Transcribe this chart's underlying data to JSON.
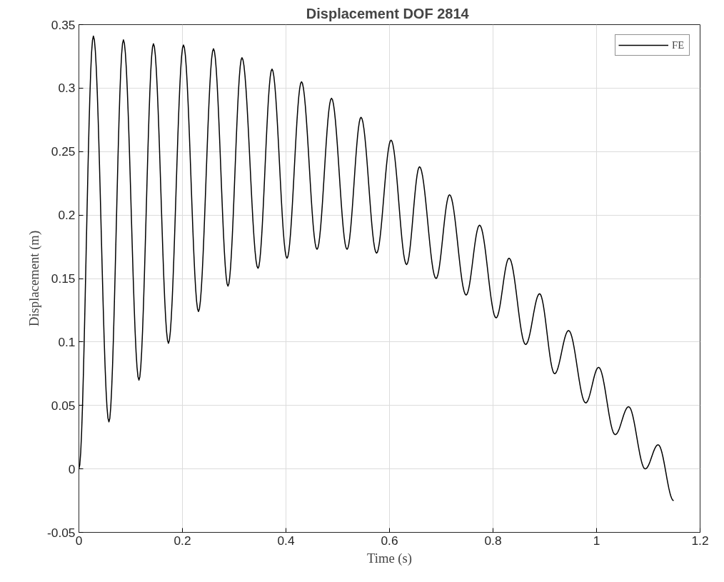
{
  "chart_data": {
    "type": "line",
    "title": "Displacement DOF  2814",
    "xlabel": "Time (s)",
    "ylabel": "Displacement (m)",
    "x": [
      0,
      0.028,
      0.058,
      0.086,
      0.116,
      0.144,
      0.173,
      0.202,
      0.231,
      0.26,
      0.288,
      0.315,
      0.346,
      0.373,
      0.402,
      0.43,
      0.46,
      0.488,
      0.518,
      0.545,
      0.575,
      0.603,
      0.633,
      0.658,
      0.69,
      0.716,
      0.748,
      0.774,
      0.806,
      0.831,
      0.863,
      0.89,
      0.919,
      0.946,
      0.979,
      1.004,
      1.036,
      1.062,
      1.094,
      1.119,
      1.149
    ],
    "series": [
      {
        "name": "FE",
        "color": "#000000",
        "values": [
          0,
          0.341,
          0.037,
          0.338,
          0.07,
          0.335,
          0.099,
          0.334,
          0.124,
          0.331,
          0.144,
          0.324,
          0.158,
          0.315,
          0.166,
          0.305,
          0.173,
          0.292,
          0.173,
          0.277,
          0.17,
          0.259,
          0.161,
          0.238,
          0.15,
          0.216,
          0.137,
          0.192,
          0.119,
          0.166,
          0.098,
          0.138,
          0.075,
          0.109,
          0.052,
          0.08,
          0.027,
          0.049,
          0,
          0.019,
          -0.025
        ]
      }
    ],
    "xlim": [
      0,
      1.2
    ],
    "ylim": [
      -0.05,
      0.35
    ],
    "xticks": [
      0,
      0.2,
      0.4,
      0.6,
      0.8,
      1,
      1.2
    ],
    "yticks": [
      -0.05,
      0,
      0.05,
      0.1,
      0.15,
      0.2,
      0.25,
      0.3,
      0.35
    ],
    "grid": true,
    "legend": "top right",
    "line_style": "solid",
    "marker": "none"
  }
}
